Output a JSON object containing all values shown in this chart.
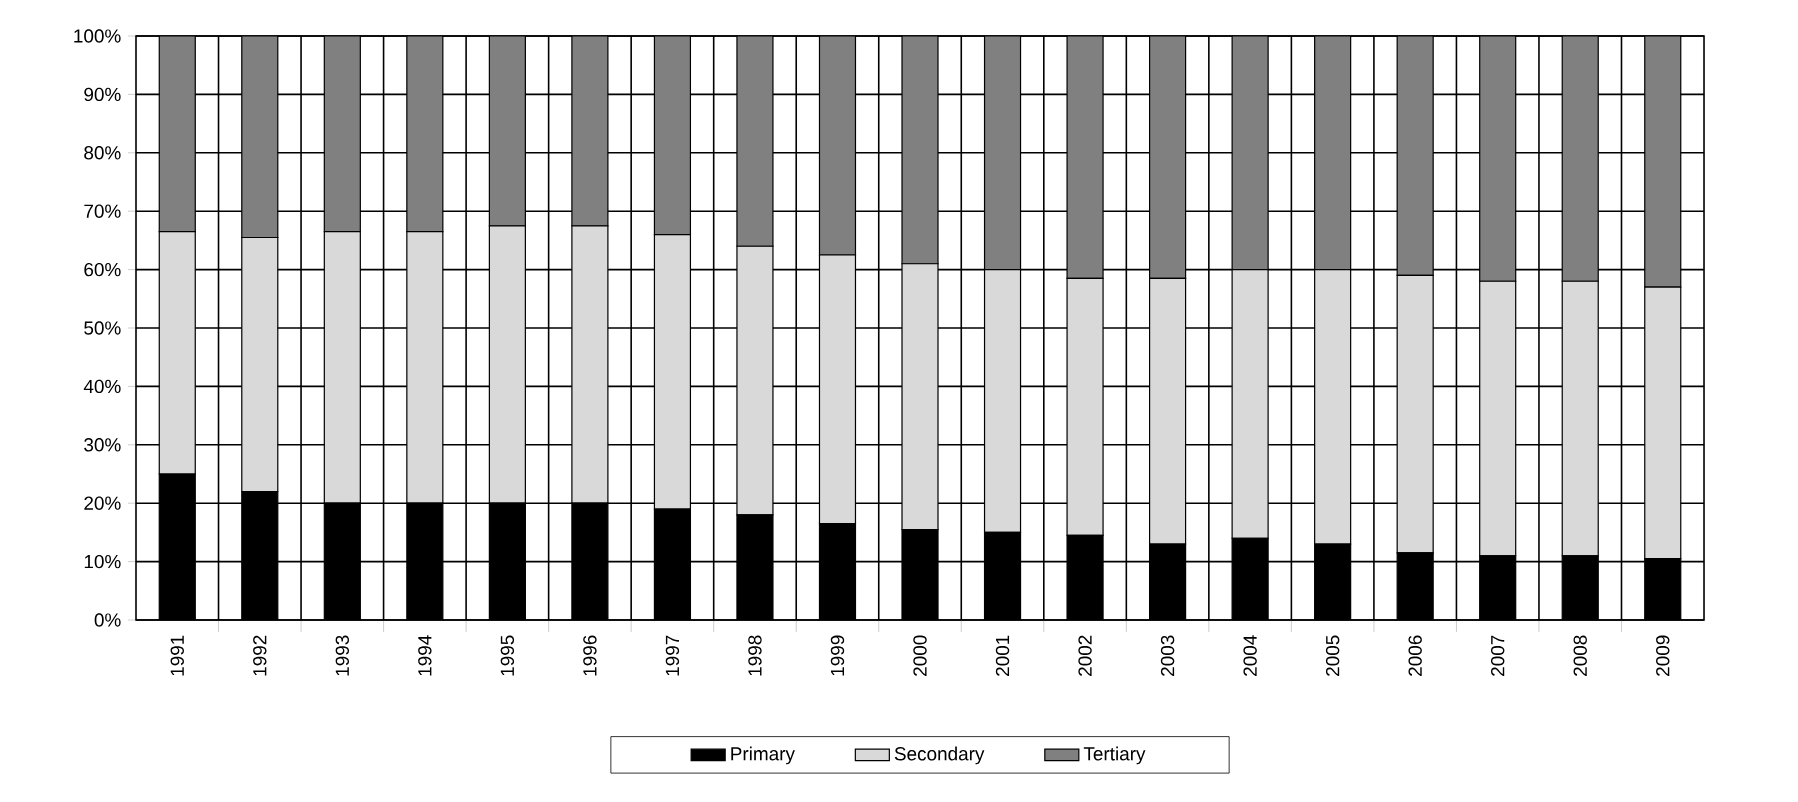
{
  "chart_data": {
    "type": "bar",
    "stacked": true,
    "categories": [
      "1991",
      "1992",
      "1993",
      "1994",
      "1995",
      "1996",
      "1997",
      "1998",
      "1999",
      "2000",
      "2001",
      "2002",
      "2003",
      "2004",
      "2005",
      "2006",
      "2007",
      "2008",
      "2009"
    ],
    "series": [
      {
        "name": "Primary",
        "color": "#000000",
        "values": [
          25,
          22,
          20,
          20,
          20,
          20,
          19,
          18,
          16.5,
          15.5,
          15,
          14.5,
          13,
          14,
          13,
          11.5,
          11,
          11,
          10.5
        ]
      },
      {
        "name": "Secondary",
        "color": "#d9d9d9",
        "values": [
          41.5,
          43.5,
          46.5,
          46.5,
          47.5,
          47.5,
          47,
          46,
          46,
          45.5,
          45,
          44,
          45.5,
          46,
          47,
          47.5,
          47,
          47,
          46.5
        ]
      },
      {
        "name": "Tertiary",
        "color": "#808080",
        "values": [
          33.5,
          34.5,
          33.5,
          33.5,
          32.5,
          32.5,
          34,
          36,
          37.5,
          39,
          40,
          41.5,
          41.5,
          40,
          40,
          41,
          42,
          42,
          43
        ]
      }
    ],
    "ylim": [
      0,
      100
    ],
    "yticks": [
      {
        "value": 0,
        "label": "0%"
      },
      {
        "value": 10,
        "label": "10%"
      },
      {
        "value": 20,
        "label": "20%"
      },
      {
        "value": 30,
        "label": "30%"
      },
      {
        "value": 40,
        "label": "40%"
      },
      {
        "value": 50,
        "label": "50%"
      },
      {
        "value": 60,
        "label": "60%"
      },
      {
        "value": 70,
        "label": "70%"
      },
      {
        "value": 80,
        "label": "80%"
      },
      {
        "value": 90,
        "label": "90%"
      },
      {
        "value": 100,
        "label": "100%"
      }
    ],
    "grid": true,
    "legend": "bottom"
  }
}
